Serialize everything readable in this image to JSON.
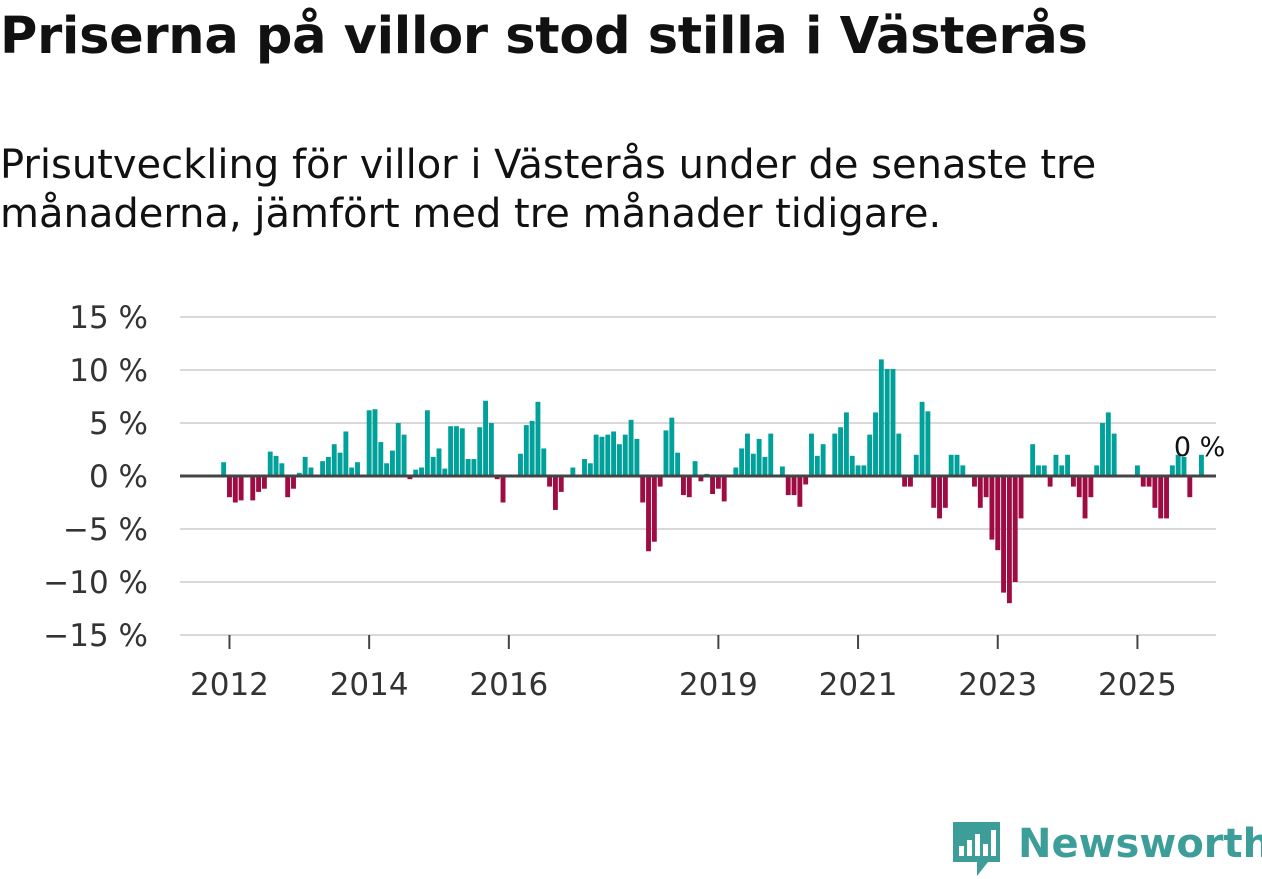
{
  "title": "Priserna på villor stod stilla i Västerås",
  "subtitle": "Prisutveckling för villor i Västerås under de senaste tre månaderna, jämfört med tre månader tidigare.",
  "brand": {
    "name": "Newsworthy",
    "color": "#3d9e99"
  },
  "colors": {
    "positive": "#00a19a",
    "negative": "#9e0c43",
    "grid": "#d9d9d9",
    "zero_line": "#444444"
  },
  "chart_data": {
    "type": "bar",
    "ylabel": "",
    "xlabel": "",
    "ylim": [
      -15,
      15
    ],
    "y_ticks": [
      {
        "value": 15,
        "label": "15 %"
      },
      {
        "value": 10,
        "label": "10 %"
      },
      {
        "value": 5,
        "label": "5 %"
      },
      {
        "value": 0,
        "label": "0 %"
      },
      {
        "value": -5,
        "label": "−5 %"
      },
      {
        "value": -10,
        "label": "−10 %"
      },
      {
        "value": -15,
        "label": "−15 %"
      }
    ],
    "x_start": "2011-05",
    "x_end": "2026-03",
    "x_ticks": [
      {
        "date": "2012-01",
        "label": "2012"
      },
      {
        "date": "2014-01",
        "label": "2014"
      },
      {
        "date": "2016-01",
        "label": "2016"
      },
      {
        "date": "2019-01",
        "label": "2019"
      },
      {
        "date": "2021-01",
        "label": "2021"
      },
      {
        "date": "2023-01",
        "label": "2023"
      },
      {
        "date": "2025-01",
        "label": "2025"
      }
    ],
    "series_start": "2011-12",
    "values": [
      1.3,
      -2.0,
      -2.5,
      -2.3,
      0.0,
      -2.3,
      -1.5,
      -1.2,
      2.3,
      1.9,
      1.2,
      -2.0,
      -1.2,
      0.3,
      1.8,
      0.8,
      0.0,
      1.4,
      1.8,
      3.0,
      2.2,
      4.2,
      0.8,
      1.3,
      0.0,
      6.2,
      6.3,
      3.2,
      1.2,
      2.4,
      5.0,
      3.9,
      -0.3,
      0.6,
      0.8,
      6.2,
      1.8,
      2.6,
      0.7,
      4.7,
      4.7,
      4.5,
      1.6,
      1.6,
      4.6,
      7.1,
      5.0,
      -0.3,
      -2.5,
      0.0,
      0.0,
      2.1,
      4.8,
      5.2,
      7.0,
      2.6,
      -1.0,
      -3.2,
      -1.5,
      0.0,
      0.8,
      0.0,
      1.6,
      1.2,
      3.9,
      3.7,
      3.9,
      4.2,
      3.0,
      3.9,
      5.3,
      3.5,
      -2.5,
      -7.1,
      -6.2,
      -1.0,
      4.3,
      5.5,
      2.2,
      -1.8,
      -2.0,
      1.4,
      -0.5,
      0.2,
      -1.7,
      -1.2,
      -2.4,
      0.0,
      0.8,
      2.6,
      4.0,
      2.1,
      3.5,
      1.8,
      4.0,
      0.0,
      0.9,
      -1.8,
      -1.8,
      -2.9,
      -0.8,
      4.0,
      1.9,
      3.0,
      0.0,
      4.0,
      4.6,
      6.0,
      1.9,
      1.0,
      1.0,
      3.9,
      6.0,
      11.0,
      10.1,
      10.1,
      4.0,
      -1.0,
      -1.0,
      2.0,
      7.0,
      6.1,
      -3.0,
      -4.0,
      -3.0,
      2.0,
      2.0,
      1.0,
      0.0,
      -1.0,
      -3.0,
      -2.0,
      -6.0,
      -7.0,
      -11.0,
      -12.0,
      -10.0,
      -4.0,
      0.0,
      3.0,
      1.0,
      1.0,
      -1.0,
      2.0,
      1.0,
      2.0,
      -1.0,
      -2.0,
      -4.0,
      -2.0,
      1.0,
      5.0,
      6.0,
      4.0,
      0.0,
      0.0,
      0.0,
      1.0,
      -1.0,
      -1.0,
      -3.0,
      -4.0,
      -4.0,
      1.0,
      2.0,
      1.8,
      -2.0,
      0.0,
      2.0
    ],
    "annotations": [
      {
        "label": "0 %",
        "date": "2025-11"
      }
    ]
  }
}
